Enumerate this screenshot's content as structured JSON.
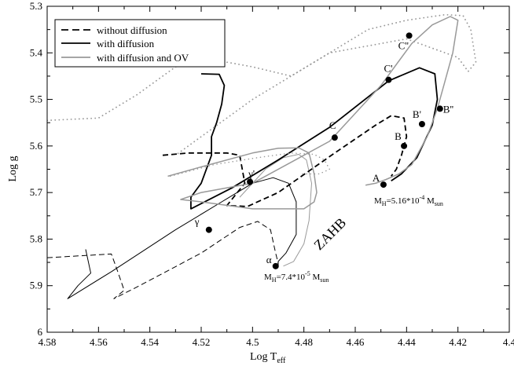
{
  "chart_data": {
    "type": "line",
    "title": "",
    "xlabel": "Log T",
    "xlabel_sub": "eff",
    "ylabel": "Log g",
    "xlim": [
      4.58,
      4.4
    ],
    "ylim": [
      5.3,
      6.0
    ],
    "x_inverted": true,
    "y_inverted": true,
    "x_ticks": [
      "4.58",
      "4.56",
      "4.54",
      "4.52",
      "4.5",
      "4.48",
      "4.46",
      "4.44",
      "4.42",
      "4.4"
    ],
    "y_ticks": [
      "5.3",
      "5.4",
      "5.5",
      "5.6",
      "5.7",
      "5.8",
      "5.9",
      "6"
    ],
    "legend": [
      {
        "name": "without diffusion",
        "style": "dashed",
        "color": "#000000"
      },
      {
        "name": "with diffusion",
        "style": "solid",
        "color": "#000000"
      },
      {
        "name": "with diffusion and OV",
        "style": "solid",
        "color": "#999999"
      }
    ],
    "series": [
      {
        "name": "without diffusion (low MH)",
        "style": "dashed",
        "color": "#000000",
        "width": 1,
        "points": [
          [
            4.58,
            5.84
          ],
          [
            4.555,
            5.832
          ],
          [
            4.553,
            5.862
          ],
          [
            4.55,
            5.91
          ],
          [
            4.554,
            5.928
          ],
          [
            4.544,
            5.9
          ],
          [
            4.52,
            5.83
          ],
          [
            4.505,
            5.775
          ],
          [
            4.498,
            5.762
          ],
          [
            4.493,
            5.78
          ],
          [
            4.491,
            5.83
          ],
          [
            4.49,
            5.852
          ],
          [
            4.491,
            5.86
          ]
        ]
      },
      {
        "name": "with diffusion (low MH)",
        "style": "solid",
        "color": "#000000",
        "width": 1,
        "points": [
          [
            4.565,
            5.822
          ],
          [
            4.563,
            5.873
          ],
          [
            4.568,
            5.9
          ],
          [
            4.572,
            5.928
          ],
          [
            4.555,
            5.87
          ],
          [
            4.53,
            5.78
          ],
          [
            4.512,
            5.72
          ],
          [
            4.5,
            5.68
          ],
          [
            4.492,
            5.668
          ],
          [
            4.486,
            5.68
          ],
          [
            4.483,
            5.72
          ],
          [
            4.483,
            5.79
          ],
          [
            4.487,
            5.83
          ],
          [
            4.49,
            5.848
          ],
          [
            4.49,
            5.858
          ]
        ]
      },
      {
        "name": "with diffusion and OV (low MH)",
        "style": "solid",
        "color": "#999999",
        "width": 1,
        "points": [
          [
            4.505,
            5.71
          ],
          [
            4.495,
            5.65
          ],
          [
            4.488,
            5.625
          ],
          [
            4.482,
            5.618
          ],
          [
            4.479,
            5.63
          ],
          [
            4.477,
            5.68
          ],
          [
            4.478,
            5.76
          ],
          [
            4.48,
            5.81
          ],
          [
            4.484,
            5.848
          ],
          [
            4.488,
            5.858
          ]
        ]
      },
      {
        "name": "without diffusion (high MH)",
        "style": "dashed",
        "color": "#000000",
        "width": 1.8,
        "points": [
          [
            4.535,
            5.62
          ],
          [
            4.525,
            5.615
          ],
          [
            4.51,
            5.615
          ],
          [
            4.505,
            5.62
          ],
          [
            4.503,
            5.68
          ],
          [
            4.51,
            5.728
          ],
          [
            4.502,
            5.73
          ],
          [
            4.49,
            5.7
          ],
          [
            4.468,
            5.615
          ],
          [
            4.452,
            5.555
          ],
          [
            4.446,
            5.535
          ],
          [
            4.441,
            5.54
          ],
          [
            4.44,
            5.58
          ],
          [
            4.442,
            5.62
          ],
          [
            4.444,
            5.65
          ],
          [
            4.446,
            5.665
          ]
        ]
      },
      {
        "name": "with diffusion (high MH)",
        "style": "solid",
        "color": "#000000",
        "width": 1.8,
        "points": [
          [
            4.52,
            5.445
          ],
          [
            4.513,
            5.446
          ],
          [
            4.511,
            5.47
          ],
          [
            4.512,
            5.51
          ],
          [
            4.514,
            5.55
          ],
          [
            4.516,
            5.58
          ],
          [
            4.516,
            5.62
          ],
          [
            4.52,
            5.68
          ],
          [
            4.524,
            5.71
          ],
          [
            4.524,
            5.735
          ],
          [
            4.508,
            5.69
          ],
          [
            4.49,
            5.63
          ],
          [
            4.47,
            5.56
          ],
          [
            4.447,
            5.46
          ],
          [
            4.435,
            5.432
          ],
          [
            4.429,
            5.445
          ],
          [
            4.428,
            5.5
          ],
          [
            4.43,
            5.555
          ],
          [
            4.436,
            5.625
          ],
          [
            4.442,
            5.66
          ],
          [
            4.446,
            5.675
          ]
        ]
      },
      {
        "name": "with diffusion and OV (high MH)",
        "style": "solid",
        "color": "#999999",
        "width": 1.5,
        "points": [
          [
            4.533,
            5.665
          ],
          [
            4.52,
            5.645
          ],
          [
            4.5,
            5.615
          ],
          [
            4.49,
            5.605
          ],
          [
            4.482,
            5.604
          ],
          [
            4.478,
            5.615
          ],
          [
            4.476,
            5.66
          ],
          [
            4.475,
            5.7
          ],
          [
            4.476,
            5.72
          ],
          [
            4.48,
            5.735
          ],
          [
            4.5,
            5.735
          ],
          [
            4.52,
            5.72
          ],
          [
            4.528,
            5.715
          ],
          [
            4.52,
            5.7
          ],
          [
            4.5,
            5.68
          ],
          [
            4.47,
            5.59
          ],
          [
            4.45,
            5.47
          ],
          [
            4.438,
            5.38
          ],
          [
            4.43,
            5.34
          ],
          [
            4.423,
            5.322
          ],
          [
            4.42,
            5.33
          ],
          [
            4.422,
            5.4
          ],
          [
            4.425,
            5.46
          ],
          [
            4.428,
            5.52
          ],
          [
            4.432,
            5.58
          ],
          [
            4.438,
            5.64
          ],
          [
            4.443,
            5.66
          ],
          [
            4.448,
            5.672
          ],
          [
            4.452,
            5.68
          ],
          [
            4.456,
            5.684
          ]
        ]
      },
      {
        "name": "with diffusion and OV (dotted)",
        "style": "dotted",
        "color": "#999999",
        "width": 1.8,
        "points": [
          [
            4.58,
            5.545
          ],
          [
            4.56,
            5.54
          ],
          [
            4.545,
            5.49
          ],
          [
            4.53,
            5.43
          ],
          [
            4.515,
            5.415
          ],
          [
            4.5,
            5.43
          ],
          [
            4.485,
            5.45
          ],
          [
            4.47,
            5.4
          ],
          [
            4.455,
            5.35
          ],
          [
            4.44,
            5.33
          ],
          [
            4.425,
            5.318
          ],
          [
            4.418,
            5.32
          ],
          [
            4.415,
            5.35
          ],
          [
            4.413,
            5.42
          ],
          [
            4.416,
            5.44
          ],
          [
            4.42,
            5.41
          ],
          [
            4.44,
            5.37
          ],
          [
            4.47,
            5.4
          ],
          [
            4.5,
            5.5
          ],
          [
            4.53,
            5.62
          ]
        ]
      },
      {
        "name": "with diffusion and OV (dotted, lower)",
        "style": "dotted",
        "color": "#999999",
        "width": 1.5,
        "points": [
          [
            4.532,
            5.665
          ],
          [
            4.515,
            5.64
          ],
          [
            4.498,
            5.625
          ],
          [
            4.485,
            5.615
          ],
          [
            4.476,
            5.618
          ],
          [
            4.472,
            5.63
          ],
          [
            4.47,
            5.65
          ],
          [
            4.474,
            5.66
          ],
          [
            4.482,
            5.66
          ]
        ]
      }
    ],
    "points": [
      {
        "label": "α",
        "x": 4.491,
        "y": 5.858
      },
      {
        "label": "γ",
        "x": 4.517,
        "y": 5.78
      },
      {
        "label": "γ'",
        "x": 4.501,
        "y": 5.677
      },
      {
        "label": "C",
        "x": 4.468,
        "y": 5.582
      },
      {
        "label": "C'",
        "x": 4.447,
        "y": 5.458
      },
      {
        "label": "C''",
        "x": 4.439,
        "y": 5.363
      },
      {
        "label": "A",
        "x": 4.449,
        "y": 5.683
      },
      {
        "label": "B",
        "x": 4.441,
        "y": 5.6
      },
      {
        "label": "B'",
        "x": 4.434,
        "y": 5.553
      },
      {
        "label": "B''",
        "x": 4.427,
        "y": 5.52
      }
    ],
    "annotations": {
      "mh_high_prefix": "M",
      "mh_high_sub": "H",
      "mh_high_value": "=5.16*10",
      "mh_high_exp": "-4",
      "mh_high_unit": " M",
      "mh_high_unit_sub": "sun",
      "mh_low_prefix": "M",
      "mh_low_sub": "H",
      "mh_low_value": "=7.4*10",
      "mh_low_exp": "-5",
      "mh_low_unit": " M",
      "mh_low_unit_sub": "sun",
      "zahb": "ZAHB"
    }
  }
}
